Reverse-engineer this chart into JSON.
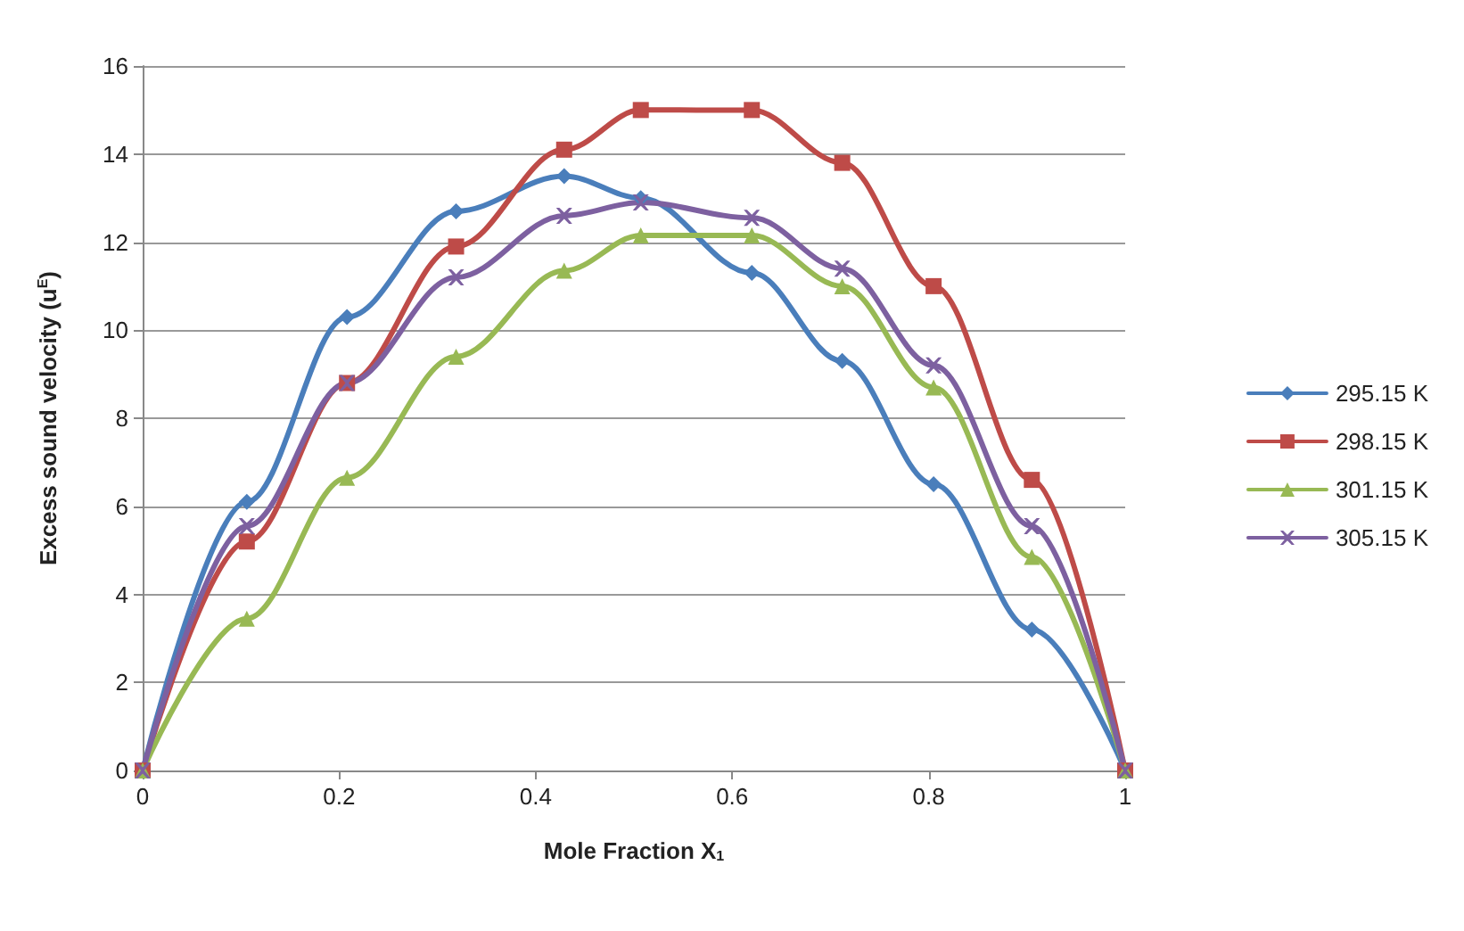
{
  "chart_data": {
    "type": "line",
    "xlabel": "Mole Fraction X$_{1}$",
    "ylabel": "Excess sound velocity (u$^{E}$)",
    "x": [
      0,
      0.106,
      0.208,
      0.319,
      0.429,
      0.507,
      0.62,
      0.712,
      0.805,
      0.905,
      1
    ],
    "series": [
      {
        "name": "295.15 K",
        "color": "#4a7ebb",
        "marker": "diamond",
        "values": [
          0,
          6.1,
          10.3,
          12.7,
          13.5,
          13.0,
          11.3,
          9.3,
          6.5,
          3.2,
          0
        ]
      },
      {
        "name": "298.15 K",
        "color": "#be4b48",
        "marker": "square",
        "values": [
          0,
          5.2,
          8.8,
          11.9,
          14.1,
          15.0,
          15.0,
          13.8,
          11.0,
          6.6,
          0
        ]
      },
      {
        "name": "301.15 K",
        "color": "#98b954",
        "marker": "triangle",
        "values": [
          0,
          3.45,
          6.65,
          9.4,
          11.35,
          12.15,
          12.15,
          11.0,
          8.7,
          4.85,
          0
        ]
      },
      {
        "name": "305.15 K",
        "color": "#7d60a0",
        "marker": "cross",
        "values": [
          0,
          5.55,
          8.8,
          11.2,
          12.6,
          12.9,
          12.55,
          11.4,
          9.2,
          5.55,
          0
        ]
      }
    ],
    "xlim": [
      0,
      1
    ],
    "xticks": [
      0,
      0.2,
      0.4,
      0.6,
      0.8,
      1
    ],
    "ylim": [
      0,
      16
    ],
    "yticks": [
      0,
      2,
      4,
      6,
      8,
      10,
      12,
      14,
      16
    ],
    "grid": "y",
    "legend": "right",
    "line_style": "solid"
  }
}
